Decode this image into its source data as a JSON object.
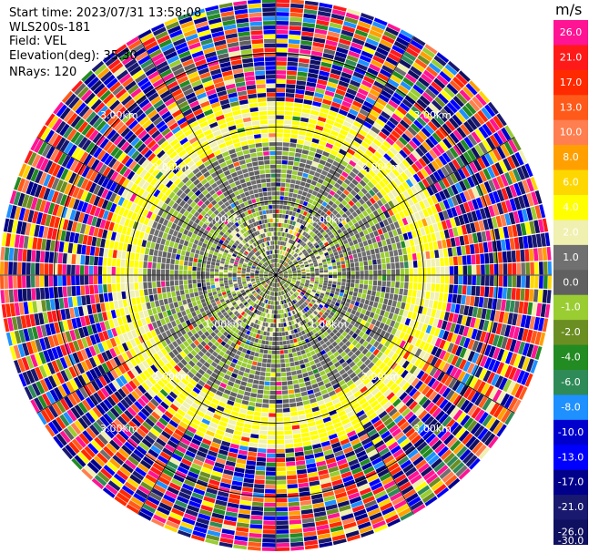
{
  "header": {
    "start_time": "Start time: 2023/07/31 13:58:08",
    "site": "WLS200s-181",
    "field": "Field: VEL",
    "elevation": "Elevation(deg): 35.30",
    "nrays": "NRays: 120"
  },
  "colorbar": {
    "unit": "m/s",
    "tick_labels": [
      "26.0",
      "21.0",
      "17.0",
      "13.0",
      "10.0",
      "8.0",
      "6.0",
      "4.0",
      "2.0",
      "1.0",
      "0.0",
      "-1.0",
      "-2.0",
      "-4.0",
      "-6.0",
      "-8.0",
      "-10.0",
      "-13.0",
      "-17.0",
      "-21.0",
      "-26.0",
      "-30.0"
    ],
    "bin_colors": [
      "#ff1493",
      "#ff1a1a",
      "#ff2a00",
      "#ff5a1a",
      "#ff7f50",
      "#ffa000",
      "#ffd700",
      "#ffff00",
      "#f0f0b0",
      "#707070",
      "#606060",
      "#9acd32",
      "#6b8e23",
      "#228b22",
      "#2e8b57",
      "#1e90ff",
      "#0000cd",
      "#0000ff",
      "#00008b",
      "#191970",
      "#101060"
    ]
  },
  "chart_data": {
    "type": "heatmap",
    "projection": "polar-ppi",
    "field": "VEL",
    "units": "m/s",
    "n_rays": 120,
    "elevation_deg": 35.3,
    "range_rings_km": [
      1.0,
      2.0,
      3.0
    ],
    "ring_label": "km",
    "velocity_scale": [
      -30.0,
      -26.0,
      -21.0,
      -17.0,
      -13.0,
      -10.0,
      -8.0,
      -6.0,
      -4.0,
      -2.0,
      -1.0,
      0.0,
      1.0,
      2.0,
      4.0,
      6.0,
      8.0,
      10.0,
      13.0,
      17.0,
      21.0,
      26.0
    ],
    "regions": [
      {
        "range_km": [
          0.0,
          0.2
        ],
        "dominant_velocity": [
          -2.0,
          0.0
        ]
      },
      {
        "range_km": [
          0.2,
          0.7
        ],
        "dominant_velocity": [
          -2.0,
          2.0
        ]
      },
      {
        "range_km": [
          0.7,
          1.5
        ],
        "dominant_velocity": [
          -2.0,
          1.0
        ]
      },
      {
        "range_km": [
          1.5,
          2.0
        ],
        "dominant_velocity": [
          1.0,
          4.0
        ]
      },
      {
        "range_km": [
          2.0,
          3.6
        ],
        "dominant_velocity": "noise"
      }
    ]
  }
}
